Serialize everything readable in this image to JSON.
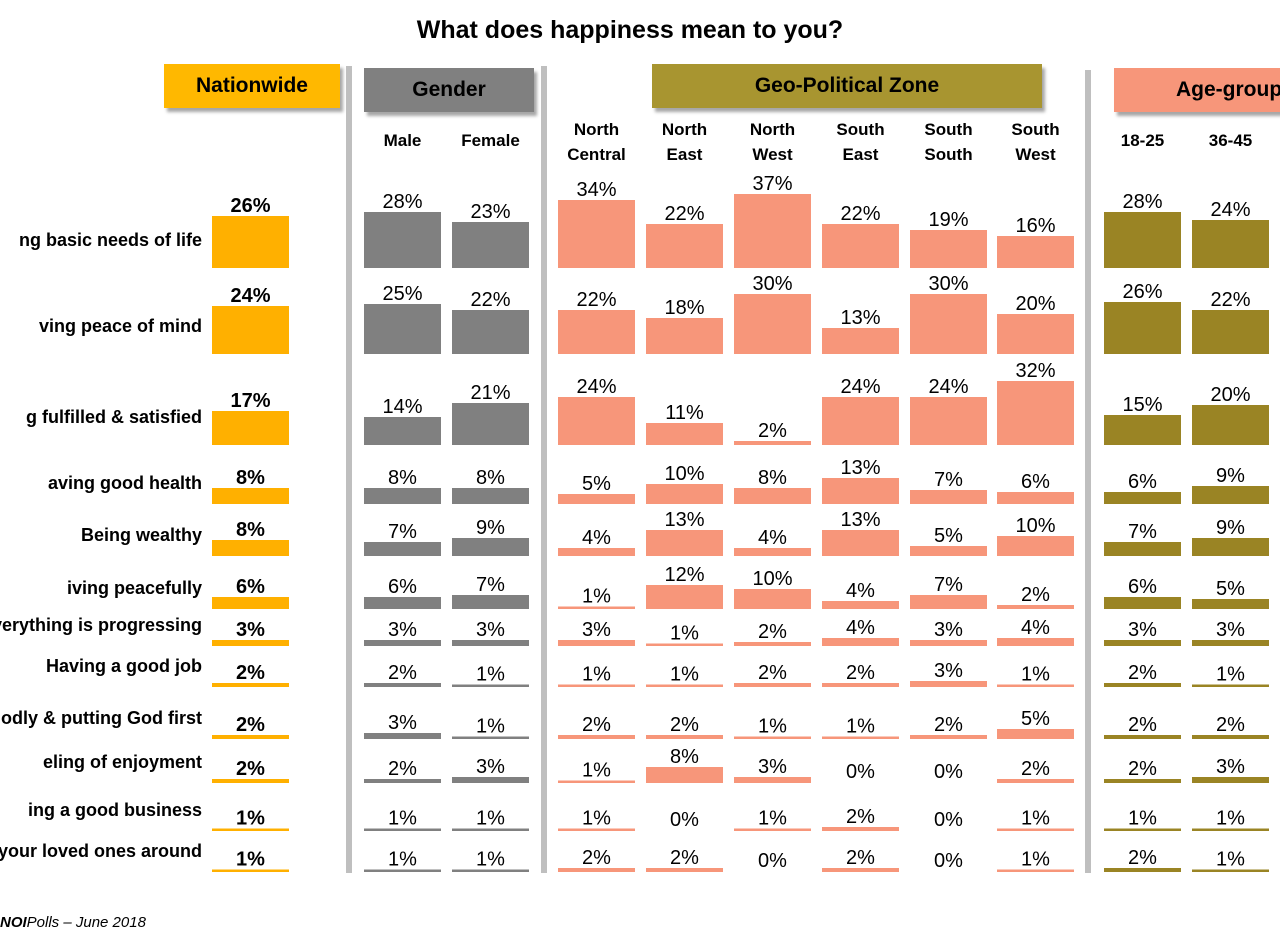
{
  "title": "What does happiness mean to you?",
  "source": {
    "prefix": " ",
    "brand": "NOI",
    "suffix": "Polls – June 2018"
  },
  "row_labels": [
    "ng basic needs of life",
    "ving peace of mind",
    "g fulfilled & satisfied",
    "aving good health",
    "Being wealthy",
    "iving peacefully",
    "verything is progressing",
    "Having a good job",
    "odly & putting God first",
    "eling of enjoyment",
    "ing a good business",
    "your loved ones around"
  ],
  "groups": [
    {
      "label": "Nationwide",
      "color": "#ffb800"
    },
    {
      "label": "Gender",
      "color": "#808080"
    },
    {
      "label": "Geo-Political Zone",
      "color": "#a89530"
    },
    {
      "label": "Age-group",
      "color": "#f7967a"
    }
  ],
  "colors": {
    "nationwide": "#ffb000",
    "gender": "#808080",
    "zone": "#f7967a",
    "age": "#9a8424",
    "separator": "#bfbfbf"
  },
  "chart_data": {
    "type": "bar",
    "title": "What does happiness mean to you?",
    "unit": "%",
    "categories": [
      "ng basic needs of life",
      "ving peace of mind",
      "g fulfilled & satisfied",
      "aving good health",
      "Being wealthy",
      "iving peacefully",
      "verything is progressing",
      "Having a good job",
      "odly & putting God first",
      "eling of enjoyment",
      "ing a good business",
      "your loved ones around"
    ],
    "series": [
      {
        "name": "Nationwide",
        "group": "Nationwide",
        "values": [
          26,
          24,
          17,
          8,
          8,
          6,
          3,
          2,
          2,
          2,
          1,
          1
        ]
      },
      {
        "name": "Male",
        "group": "Gender",
        "values": [
          28,
          25,
          14,
          8,
          7,
          6,
          3,
          2,
          3,
          2,
          1,
          1
        ]
      },
      {
        "name": "Female",
        "group": "Gender",
        "values": [
          23,
          22,
          21,
          8,
          9,
          7,
          3,
          1,
          1,
          3,
          1,
          1
        ]
      },
      {
        "name": "North\nCentral",
        "group": "Geo-Political Zone",
        "values": [
          34,
          22,
          24,
          5,
          4,
          1,
          3,
          1,
          2,
          1,
          1,
          2
        ]
      },
      {
        "name": "North\nEast",
        "group": "Geo-Political Zone",
        "values": [
          22,
          18,
          11,
          10,
          13,
          12,
          1,
          1,
          2,
          8,
          0,
          2
        ]
      },
      {
        "name": "North\nWest",
        "group": "Geo-Political Zone",
        "values": [
          37,
          30,
          2,
          8,
          4,
          10,
          2,
          2,
          1,
          3,
          1,
          0
        ]
      },
      {
        "name": "South\nEast",
        "group": "Geo-Political Zone",
        "values": [
          22,
          13,
          24,
          13,
          13,
          4,
          4,
          2,
          1,
          0,
          2,
          2
        ]
      },
      {
        "name": "South\nSouth",
        "group": "Geo-Political Zone",
        "values": [
          19,
          30,
          24,
          7,
          5,
          7,
          3,
          3,
          2,
          0,
          0,
          0
        ]
      },
      {
        "name": "South\nWest",
        "group": "Geo-Political Zone",
        "values": [
          16,
          20,
          32,
          6,
          10,
          2,
          4,
          1,
          5,
          2,
          1,
          1
        ]
      },
      {
        "name": "18-25",
        "group": "Age-group",
        "values": [
          28,
          26,
          15,
          6,
          7,
          6,
          3,
          2,
          2,
          2,
          1,
          2
        ]
      },
      {
        "name": "36-45",
        "group": "Age-group",
        "values": [
          24,
          22,
          20,
          9,
          9,
          5,
          3,
          1,
          2,
          3,
          1,
          1
        ]
      }
    ]
  }
}
